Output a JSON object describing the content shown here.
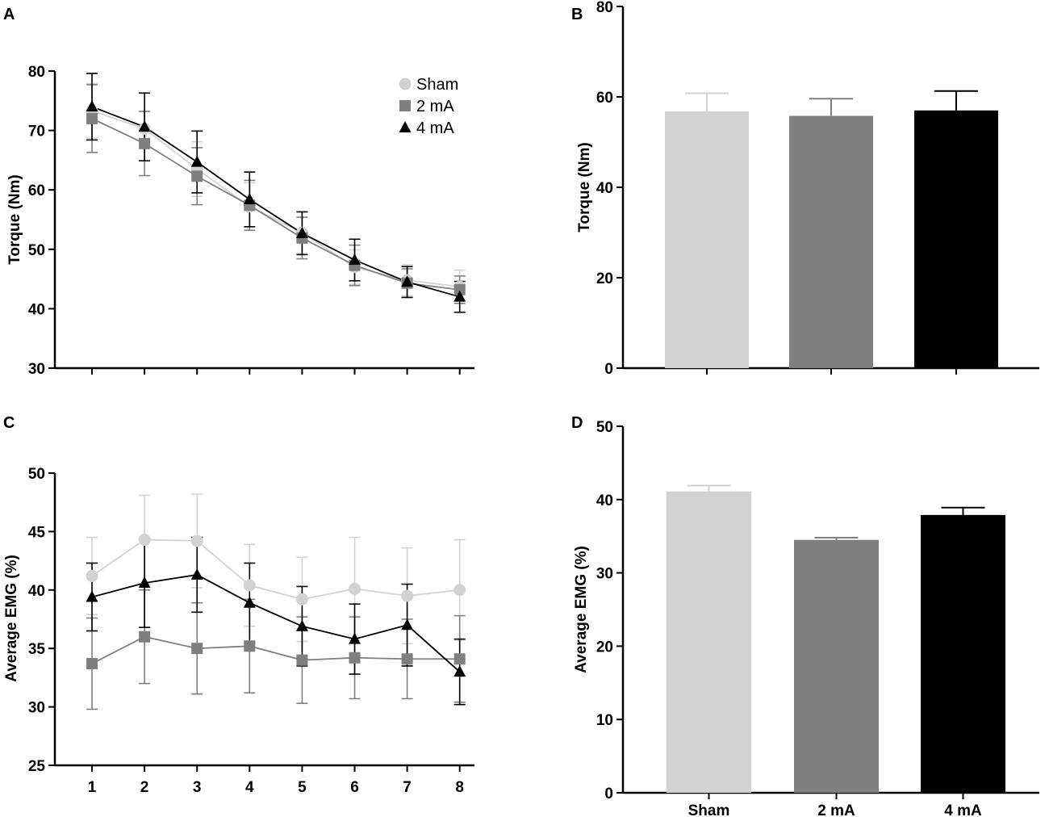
{
  "chart_data": [
    {
      "panel": "A",
      "type": "line",
      "xlabel": "",
      "ylabel": "Torque (Nm)",
      "x": [
        1,
        2,
        3,
        4,
        5,
        6,
        7,
        8
      ],
      "ylim": [
        30,
        80
      ],
      "yticks": [
        30,
        40,
        50,
        60,
        70,
        80
      ],
      "xtick_labels": false,
      "legend": "top-right",
      "series": [
        {
          "name": "Sham",
          "marker": "circle",
          "color": "#d2d2d2",
          "values": [
            73.3,
            70.3,
            63.5,
            57.2,
            52.8,
            47.0,
            44.8,
            43.7
          ],
          "errors": [
            4.6,
            2.9,
            4.6,
            4.0,
            3.5,
            2.9,
            2.6,
            2.8
          ]
        },
        {
          "name": "2 mA",
          "marker": "square",
          "color": "#7f7f7f",
          "values": [
            72.0,
            67.8,
            62.3,
            57.4,
            51.9,
            47.3,
            44.3,
            43.2
          ],
          "errors": [
            5.7,
            5.4,
            4.8,
            4.2,
            3.5,
            3.4,
            2.4,
            2.3
          ]
        },
        {
          "name": "4 mA",
          "marker": "triangle",
          "color": "#000000",
          "values": [
            74.0,
            70.6,
            64.7,
            58.4,
            52.7,
            48.2,
            44.5,
            42.0
          ],
          "errors": [
            5.6,
            5.7,
            5.2,
            4.6,
            3.6,
            3.5,
            2.6,
            2.6
          ]
        }
      ]
    },
    {
      "panel": "B",
      "type": "bar",
      "xlabel": "",
      "ylabel": "Torque (Nm)",
      "categories": [
        "Sham",
        "2 mA",
        "4 mA"
      ],
      "category_labels_shown": false,
      "values": [
        56.8,
        55.8,
        57.0
      ],
      "errors": [
        4.0,
        3.8,
        4.3
      ],
      "colors": [
        "#d2d2d2",
        "#7f7f7f",
        "#000000"
      ],
      "ylim": [
        0,
        80
      ],
      "yticks": [
        0,
        20,
        40,
        60,
        80
      ]
    },
    {
      "panel": "C",
      "type": "line",
      "xlabel": "",
      "ylabel": "Average EMG (%)",
      "x": [
        1,
        2,
        3,
        4,
        5,
        6,
        7,
        8
      ],
      "ylim": [
        25,
        50
      ],
      "yticks": [
        25,
        30,
        35,
        40,
        45,
        50
      ],
      "xtick_labels": true,
      "series": [
        {
          "name": "Sham",
          "marker": "circle",
          "color": "#d2d2d2",
          "values": [
            41.2,
            44.3,
            44.2,
            40.4,
            39.2,
            40.1,
            39.5,
            40.0
          ],
          "errors": [
            3.3,
            3.8,
            4.0,
            3.5,
            3.6,
            4.4,
            4.1,
            4.3
          ]
        },
        {
          "name": "2 mA",
          "marker": "square",
          "color": "#7f7f7f",
          "values": [
            33.7,
            36.0,
            35.0,
            35.2,
            34.0,
            34.2,
            34.1,
            34.1
          ],
          "errors": [
            3.9,
            4.0,
            3.9,
            4.0,
            3.7,
            3.5,
            3.4,
            3.7
          ]
        },
        {
          "name": "4 mA",
          "marker": "triangle",
          "color": "#000000",
          "values": [
            39.4,
            40.6,
            41.3,
            38.9,
            36.9,
            35.8,
            37.0,
            33.0
          ],
          "errors": [
            2.9,
            3.8,
            3.2,
            3.4,
            3.4,
            3.0,
            3.5,
            2.8
          ]
        }
      ]
    },
    {
      "panel": "D",
      "type": "bar",
      "xlabel": "",
      "ylabel": "Average EMG (%)",
      "categories": [
        "Sham",
        "2 mA",
        "4 mA"
      ],
      "category_labels_shown": true,
      "values": [
        41.1,
        34.5,
        37.9
      ],
      "errors": [
        0.8,
        0.3,
        1.0
      ],
      "colors": [
        "#d2d2d2",
        "#7f7f7f",
        "#000000"
      ],
      "ylim": [
        0,
        50
      ],
      "yticks": [
        0,
        10,
        20,
        30,
        40,
        50
      ]
    }
  ]
}
